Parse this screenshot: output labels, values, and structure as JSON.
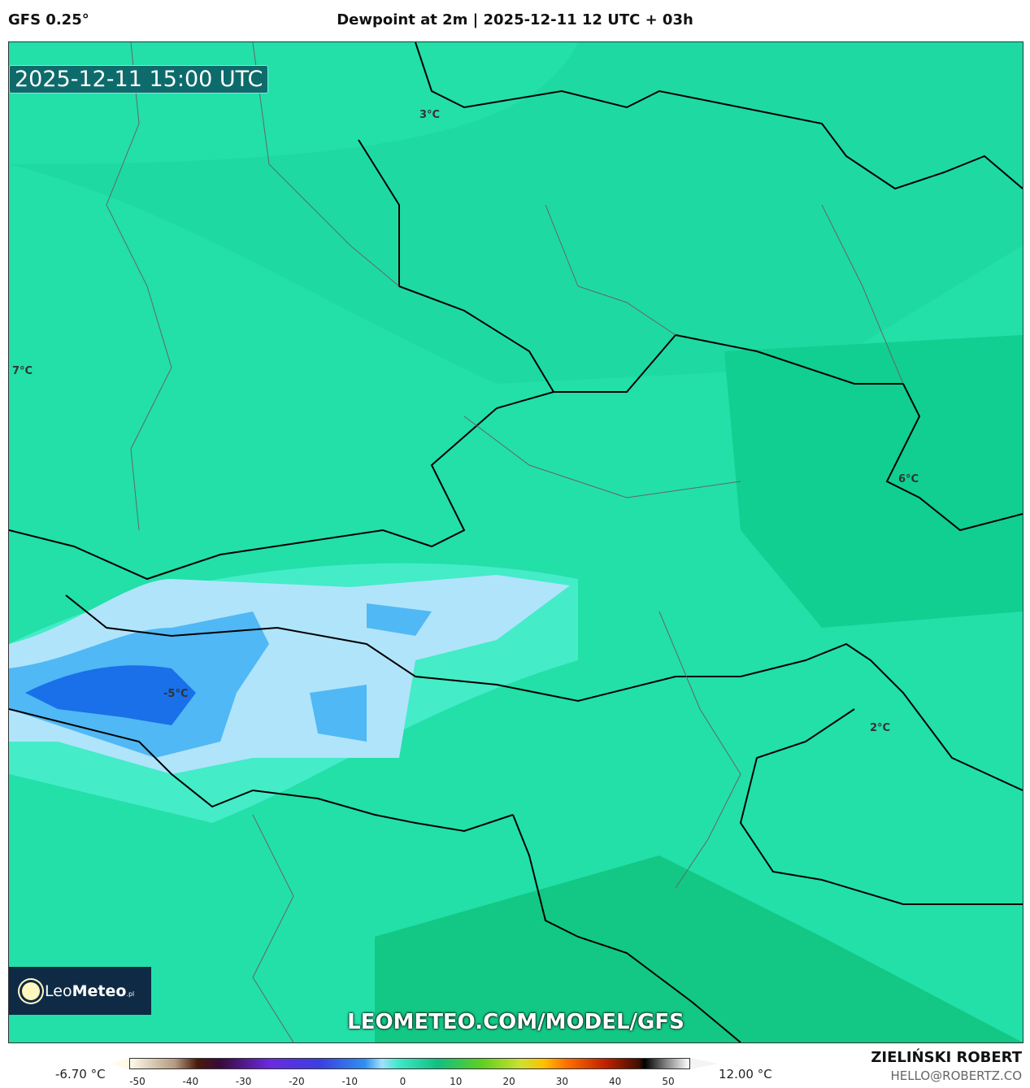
{
  "header": {
    "model": "GFS 0.25°",
    "title": "Dewpoint at 2m | 2025-12-11 12 UTC + 03h"
  },
  "map": {
    "timestamp": "2025-12-11 15:00 UTC",
    "contour_labels": [
      "3°C",
      "7°C",
      "6°C",
      "-5°C",
      "2°C"
    ],
    "watermark": "LEOMETEO.COM/MODEL/GFS",
    "logo": {
      "text_light": "Leo",
      "text_bold": "Meteo",
      "suffix": ".pl"
    }
  },
  "colorbar": {
    "min_label": "-6.70 °C",
    "max_label": "12.00 °C",
    "ticks": [
      "-50",
      "-40",
      "-30",
      "-20",
      "-10",
      "0",
      "10",
      "20",
      "30",
      "40",
      "50"
    ]
  },
  "footer": {
    "author": "ZIELIŃSKI ROBERT",
    "email": "HELLO@ROBERTZ.CO"
  },
  "colors": {
    "base": "#1fdfa6",
    "cold_light": "#b0e4fa",
    "cold_mid": "#50b8f5",
    "cold_deep": "#1a70e8",
    "warm": "#10cc88"
  }
}
